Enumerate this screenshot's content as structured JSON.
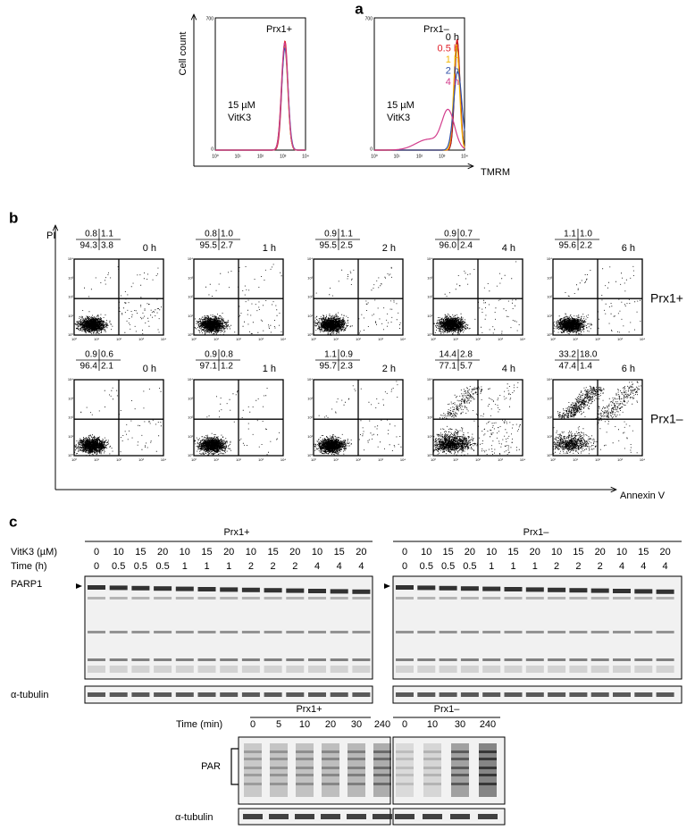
{
  "panel_a": {
    "label": "a",
    "y_axis_label": "Cell count",
    "x_axis_label": "TMRM",
    "y_ticks": [
      "700",
      "0"
    ],
    "x_ticks": [
      "10⁰",
      "10¹",
      "10²",
      "10³",
      "10⁴"
    ],
    "treatment": [
      "15 µM",
      "VitK3"
    ],
    "plots": [
      {
        "title": "Prx1+"
      },
      {
        "title": "Prx1–"
      }
    ],
    "legend": [
      {
        "label": "0 h",
        "color": "#000000"
      },
      {
        "label": "0.5 h",
        "color": "#e0202a"
      },
      {
        "label": "1 h",
        "color": "#f2b705"
      },
      {
        "label": "2 h",
        "color": "#2f4fa8"
      },
      {
        "label": "4 h",
        "color": "#d23c8c"
      }
    ]
  },
  "panel_b": {
    "label": "b",
    "y_axis_label": "PI",
    "x_axis_label": "Annexin V",
    "axis_ticks": [
      "10⁰",
      "10¹",
      "10²",
      "10³",
      "10⁴"
    ],
    "rows": [
      {
        "label": "Prx1+",
        "plots": [
          {
            "time": "0 h",
            "quadrants": [
              "0.8",
              "1.1",
              "94.3",
              "3.8"
            ]
          },
          {
            "time": "1 h",
            "quadrants": [
              "0.8",
              "1.0",
              "95.5",
              "2.7"
            ]
          },
          {
            "time": "2 h",
            "quadrants": [
              "0.9",
              "1.1",
              "95.5",
              "2.5"
            ]
          },
          {
            "time": "4 h",
            "quadrants": [
              "0.9",
              "0.7",
              "96.0",
              "2.4"
            ]
          },
          {
            "time": "6 h",
            "quadrants": [
              "1.1",
              "1.0",
              "95.6",
              "2.2"
            ]
          }
        ]
      },
      {
        "label": "Prx1–",
        "plots": [
          {
            "time": "0 h",
            "quadrants": [
              "0.9",
              "0.6",
              "96.4",
              "2.1"
            ]
          },
          {
            "time": "1 h",
            "quadrants": [
              "0.9",
              "0.8",
              "97.1",
              "1.2"
            ]
          },
          {
            "time": "2 h",
            "quadrants": [
              "1.1",
              "0.9",
              "95.7",
              "2.3"
            ]
          },
          {
            "time": "4 h",
            "quadrants": [
              "14.4",
              "2.8",
              "77.1",
              "5.7"
            ]
          },
          {
            "time": "6 h",
            "quadrants": [
              "33.2",
              "18.0",
              "47.4",
              "1.4"
            ]
          }
        ]
      }
    ]
  },
  "panel_c": {
    "label": "c",
    "parp_blot": {
      "groups": [
        "Prx1+",
        "Prx1–"
      ],
      "row_labels": [
        "VitK3 (µM)",
        "Time (h)"
      ],
      "vitk3": [
        "0",
        "10",
        "15",
        "20",
        "10",
        "15",
        "20",
        "10",
        "15",
        "20",
        "10",
        "15",
        "20"
      ],
      "time": [
        "0",
        "0.5",
        "0.5",
        "0.5",
        "1",
        "1",
        "1",
        "2",
        "2",
        "2",
        "4",
        "4",
        "4"
      ],
      "band_labels": [
        "PARP1",
        "α-tubulin"
      ]
    },
    "par_blot": {
      "row_label": "Time (min)",
      "groups": [
        {
          "name": "Prx1+",
          "times": [
            "0",
            "5",
            "10",
            "20",
            "30",
            "240"
          ]
        },
        {
          "name": "Prx1–",
          "times": [
            "0",
            "10",
            "30",
            "240"
          ]
        }
      ],
      "band_labels": [
        "PAR",
        "α-tubulin"
      ]
    }
  }
}
